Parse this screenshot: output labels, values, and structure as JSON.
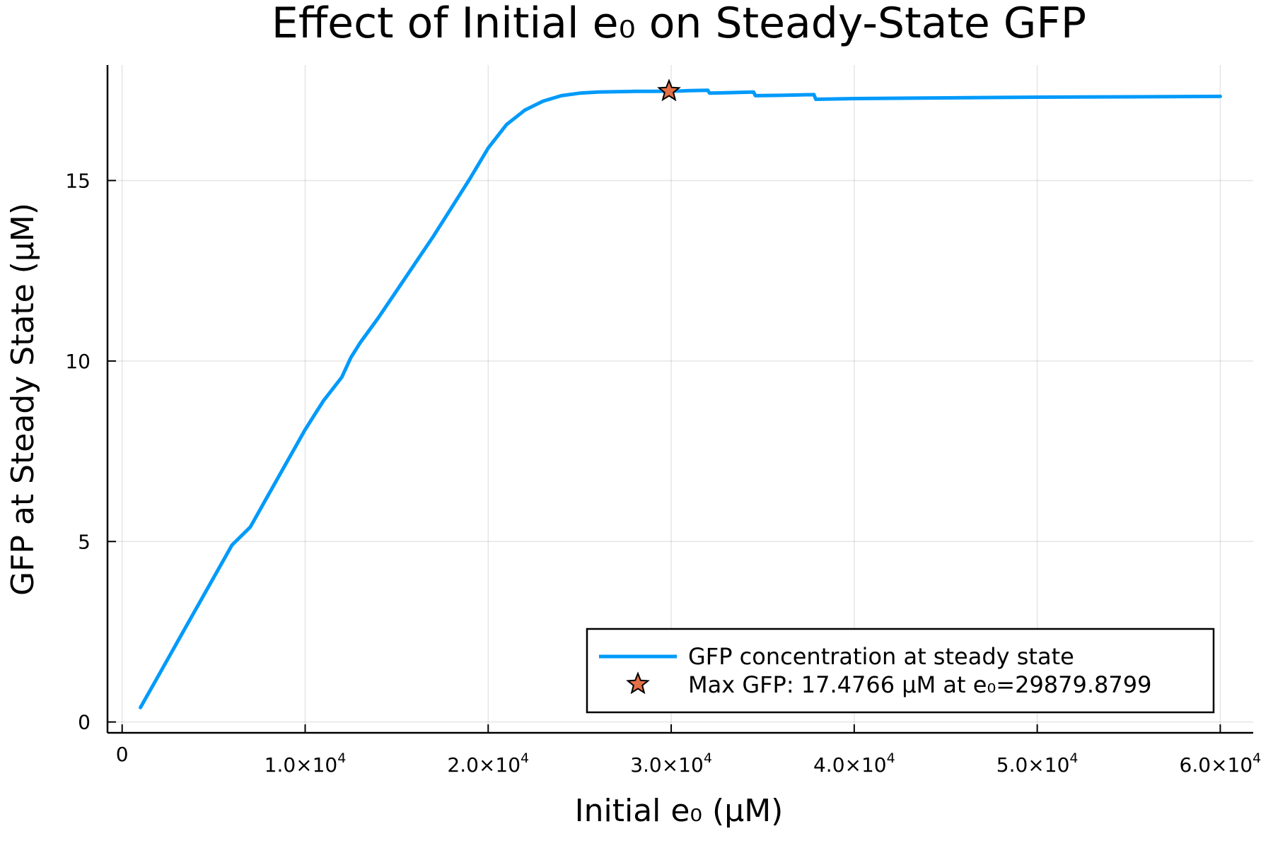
{
  "chart_data": {
    "type": "line",
    "title": "Effect of Initial e₀ on Steady-State GFP",
    "xlabel": "Initial e₀ (μM)",
    "ylabel": "GFP at Steady State (μM)",
    "xlim": [
      -800,
      61800
    ],
    "ylim": [
      -0.3,
      18.2
    ],
    "x_ticks": [
      {
        "value": 0,
        "mantissa": "0",
        "exponent": ""
      },
      {
        "value": 10000,
        "mantissa": "1.0×10",
        "exponent": "4"
      },
      {
        "value": 20000,
        "mantissa": "2.0×10",
        "exponent": "4"
      },
      {
        "value": 30000,
        "mantissa": "3.0×10",
        "exponent": "4"
      },
      {
        "value": 40000,
        "mantissa": "4.0×10",
        "exponent": "4"
      },
      {
        "value": 50000,
        "mantissa": "5.0×10",
        "exponent": "4"
      },
      {
        "value": 60000,
        "mantissa": "6.0×10",
        "exponent": "4"
      }
    ],
    "y_ticks": [
      {
        "value": 0,
        "label": "0"
      },
      {
        "value": 5,
        "label": "5"
      },
      {
        "value": 10,
        "label": "10"
      },
      {
        "value": 15,
        "label": "15"
      }
    ],
    "grid": true,
    "legend_position": "bottom-right",
    "series": [
      {
        "name": "GFP concentration at steady state",
        "kind": "line",
        "color": "#009AFA",
        "x": [
          1000,
          2000,
          3000,
          4000,
          5000,
          6000,
          7000,
          7500,
          8000,
          9000,
          10000,
          10500,
          11000,
          12000,
          12500,
          13000,
          14000,
          15000,
          16000,
          17000,
          18000,
          19000,
          20000,
          21000,
          22000,
          23000,
          24000,
          25000,
          26000,
          27000,
          28000,
          29000,
          29880,
          30500,
          31000,
          32000,
          32100,
          33000,
          34500,
          34600,
          36000,
          37800,
          37900,
          40000,
          45000,
          50000,
          55000,
          60000
        ],
        "y": [
          0.4,
          1.3,
          2.2,
          3.1,
          4.0,
          4.9,
          5.4,
          5.85,
          6.3,
          7.2,
          8.1,
          8.5,
          8.9,
          9.55,
          10.1,
          10.5,
          11.2,
          11.95,
          12.7,
          13.45,
          14.25,
          15.05,
          15.9,
          16.55,
          16.95,
          17.2,
          17.35,
          17.42,
          17.45,
          17.46,
          17.47,
          17.47,
          17.4766,
          17.48,
          17.49,
          17.5,
          17.42,
          17.43,
          17.45,
          17.35,
          17.36,
          17.38,
          17.25,
          17.27,
          17.29,
          17.31,
          17.32,
          17.33
        ]
      },
      {
        "name": "Max GFP: 17.4766 μM at e₀=29879.8799",
        "kind": "marker",
        "marker": "star",
        "color": "#E26F46",
        "x": [
          29879.8799
        ],
        "y": [
          17.4766
        ]
      }
    ]
  }
}
